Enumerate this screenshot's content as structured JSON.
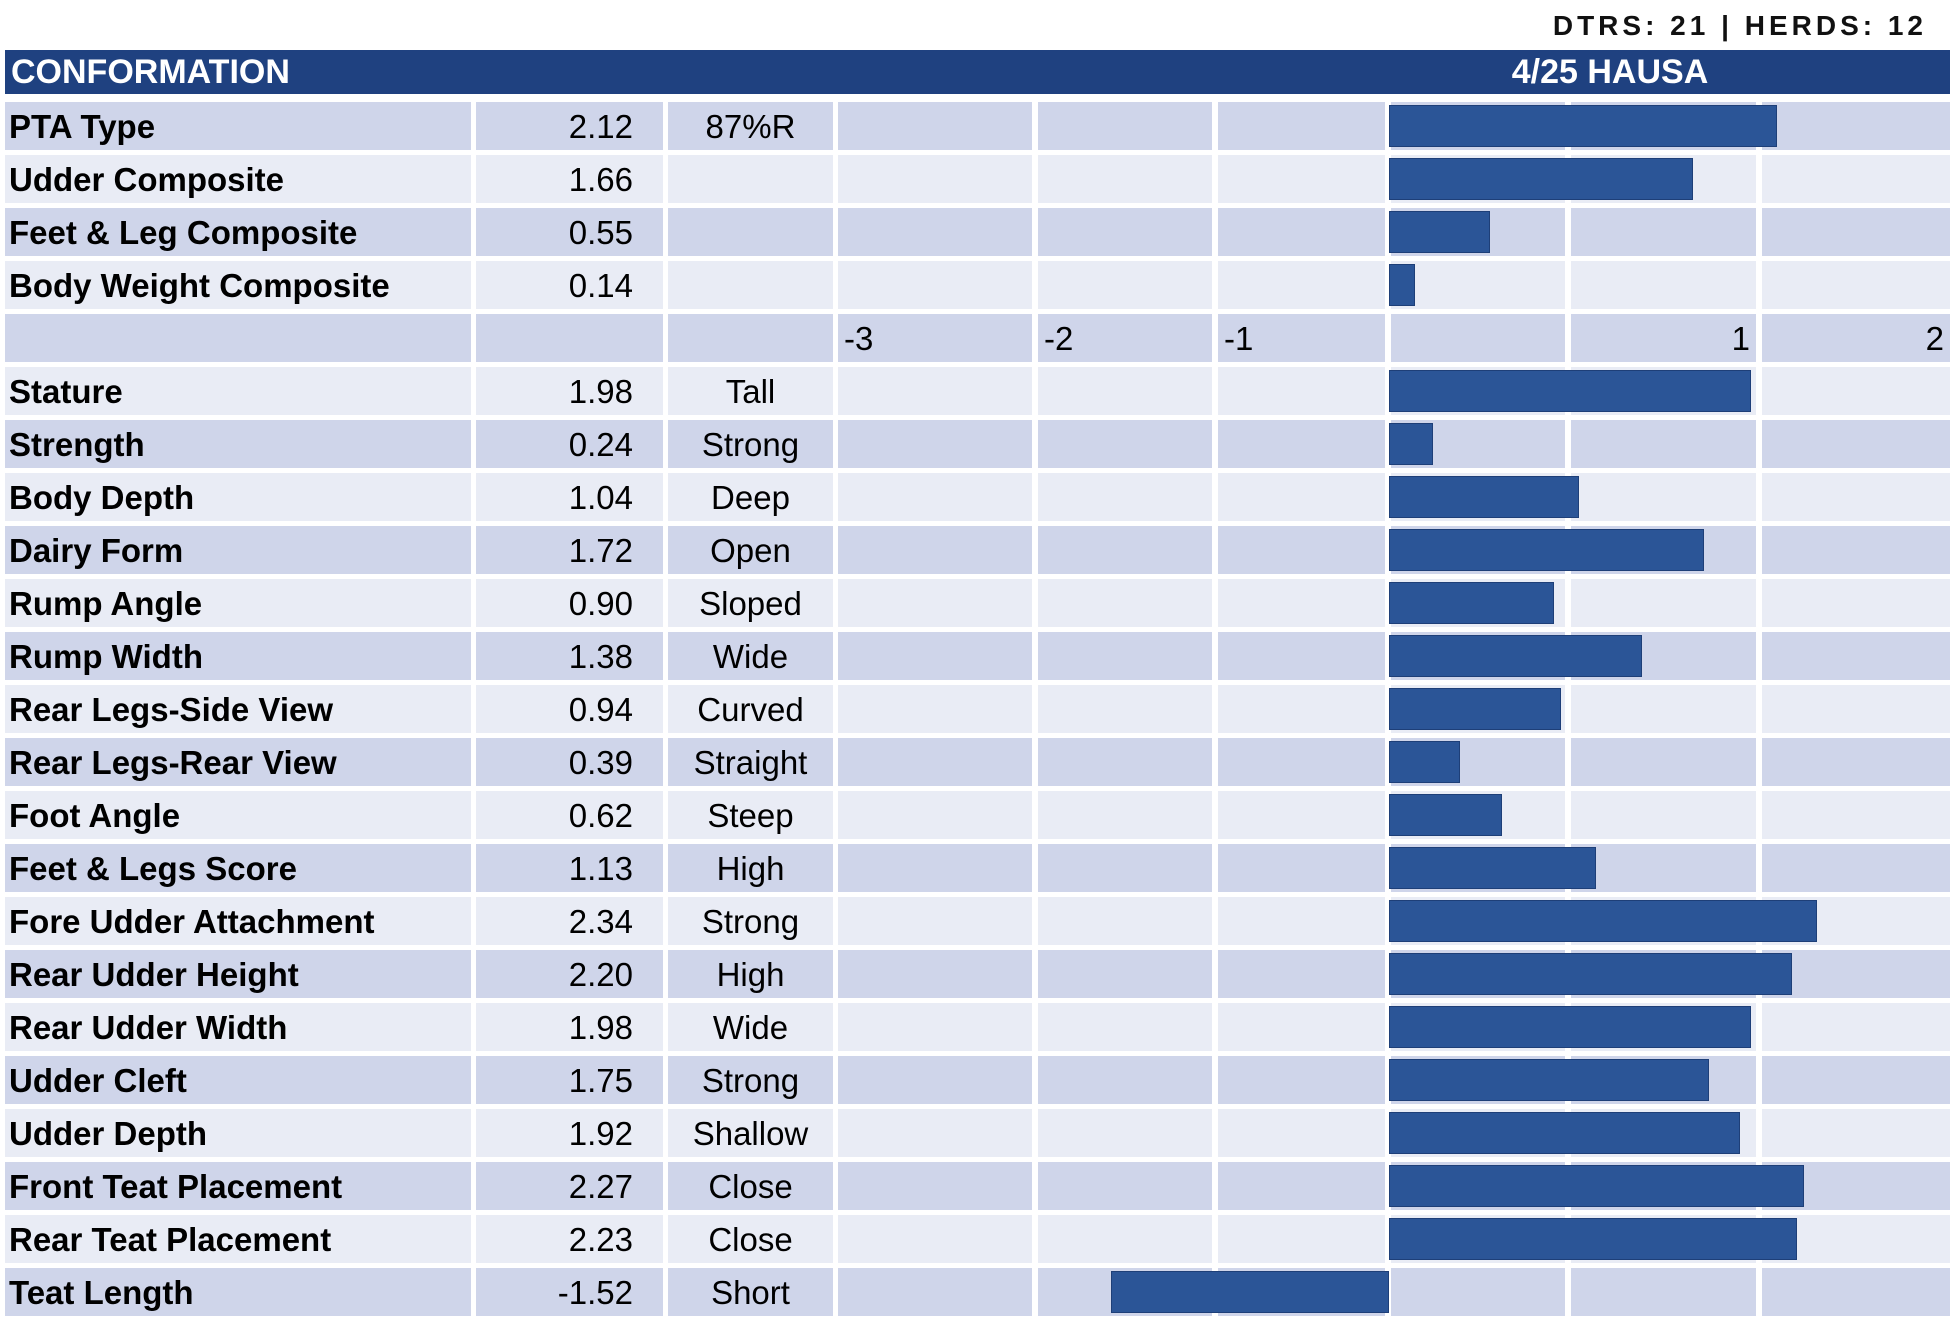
{
  "stats": {
    "dtrs": "DTRS: 21",
    "herds": "HERDS: 12",
    "sep": "|"
  },
  "header": {
    "title": "CONFORMATION",
    "source": "4/25 HAUSA"
  },
  "colors": {
    "header": "#1f4180",
    "bar": "#2b5597",
    "row_even": "#cfd5ea",
    "row_odd": "#e9ecf5"
  },
  "chart_data": {
    "type": "bar",
    "orientation": "horizontal",
    "xlim": [
      -3,
      3
    ],
    "ticks": [
      "-3",
      "-2",
      "-1",
      "",
      "1",
      "2",
      "3"
    ],
    "composites": [
      {
        "label": "PTA Type",
        "display": "2.12",
        "value": 2.12,
        "desc": "87%R"
      },
      {
        "label": "Udder Composite",
        "display": "1.66",
        "value": 1.66,
        "desc": ""
      },
      {
        "label": "Feet & Leg Composite",
        "display": "0.55",
        "value": 0.55,
        "desc": ""
      },
      {
        "label": "Body Weight Composite",
        "display": "0.14",
        "value": 0.14,
        "desc": ""
      }
    ],
    "traits": [
      {
        "label": "Stature",
        "display": "1.98",
        "value": 1.98,
        "desc": "Tall"
      },
      {
        "label": "Strength",
        "display": "0.24",
        "value": 0.24,
        "desc": "Strong"
      },
      {
        "label": "Body Depth",
        "display": "1.04",
        "value": 1.04,
        "desc": "Deep"
      },
      {
        "label": "Dairy Form",
        "display": "1.72",
        "value": 1.72,
        "desc": "Open"
      },
      {
        "label": "Rump Angle",
        "display": "0.90",
        "value": 0.9,
        "desc": "Sloped"
      },
      {
        "label": "Rump Width",
        "display": "1.38",
        "value": 1.38,
        "desc": "Wide"
      },
      {
        "label": "Rear Legs-Side View",
        "display": "0.94",
        "value": 0.94,
        "desc": "Curved"
      },
      {
        "label": "Rear Legs-Rear View",
        "display": "0.39",
        "value": 0.39,
        "desc": "Straight"
      },
      {
        "label": "Foot Angle",
        "display": "0.62",
        "value": 0.62,
        "desc": "Steep"
      },
      {
        "label": "Feet & Legs Score",
        "display": "1.13",
        "value": 1.13,
        "desc": "High"
      },
      {
        "label": "Fore Udder Attachment",
        "display": "2.34",
        "value": 2.34,
        "desc": "Strong"
      },
      {
        "label": "Rear Udder Height",
        "display": "2.20",
        "value": 2.2,
        "desc": "High"
      },
      {
        "label": "Rear Udder Width",
        "display": "1.98",
        "value": 1.98,
        "desc": "Wide"
      },
      {
        "label": "Udder Cleft",
        "display": "1.75",
        "value": 1.75,
        "desc": "Strong"
      },
      {
        "label": "Udder Depth",
        "display": "1.92",
        "value": 1.92,
        "desc": "Shallow"
      },
      {
        "label": "Front Teat Placement",
        "display": "2.27",
        "value": 2.27,
        "desc": "Close"
      },
      {
        "label": "Rear Teat Placement",
        "display": "2.23",
        "value": 2.23,
        "desc": "Close"
      },
      {
        "label": "Teat Length",
        "display": "-1.52",
        "value": -1.52,
        "desc": "Short"
      }
    ]
  }
}
